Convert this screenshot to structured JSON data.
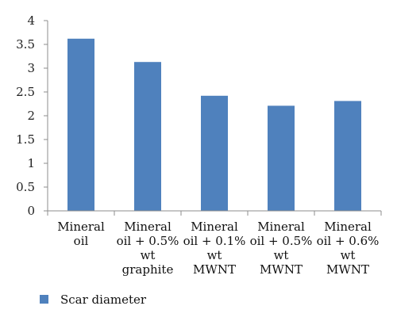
{
  "chart_data": {
    "type": "bar",
    "categories": [
      [
        "Mineral",
        "oil"
      ],
      [
        "Mineral",
        "oil + 0.5%",
        "wt",
        "graphite"
      ],
      [
        "Mineral",
        "oil + 0.1%",
        "wt",
        "MWNT"
      ],
      [
        "Mineral",
        "oil + 0.5%",
        "wt",
        "MWNT"
      ],
      [
        "Mineral",
        "oil + 0.6%",
        "wt",
        "MWNT"
      ]
    ],
    "series": [
      {
        "name": "Scar diameter",
        "values": [
          3.62,
          3.13,
          2.42,
          2.21,
          2.31
        ],
        "color": "#4f81bd"
      }
    ],
    "ylim": [
      0,
      4
    ],
    "ytick_step": 0.5,
    "ytick_labels": [
      "0",
      "0.5",
      "1",
      "1.5",
      "2",
      "2.5",
      "3",
      "3.5",
      "4"
    ],
    "grid": false,
    "legend_position": "bottom-left"
  }
}
